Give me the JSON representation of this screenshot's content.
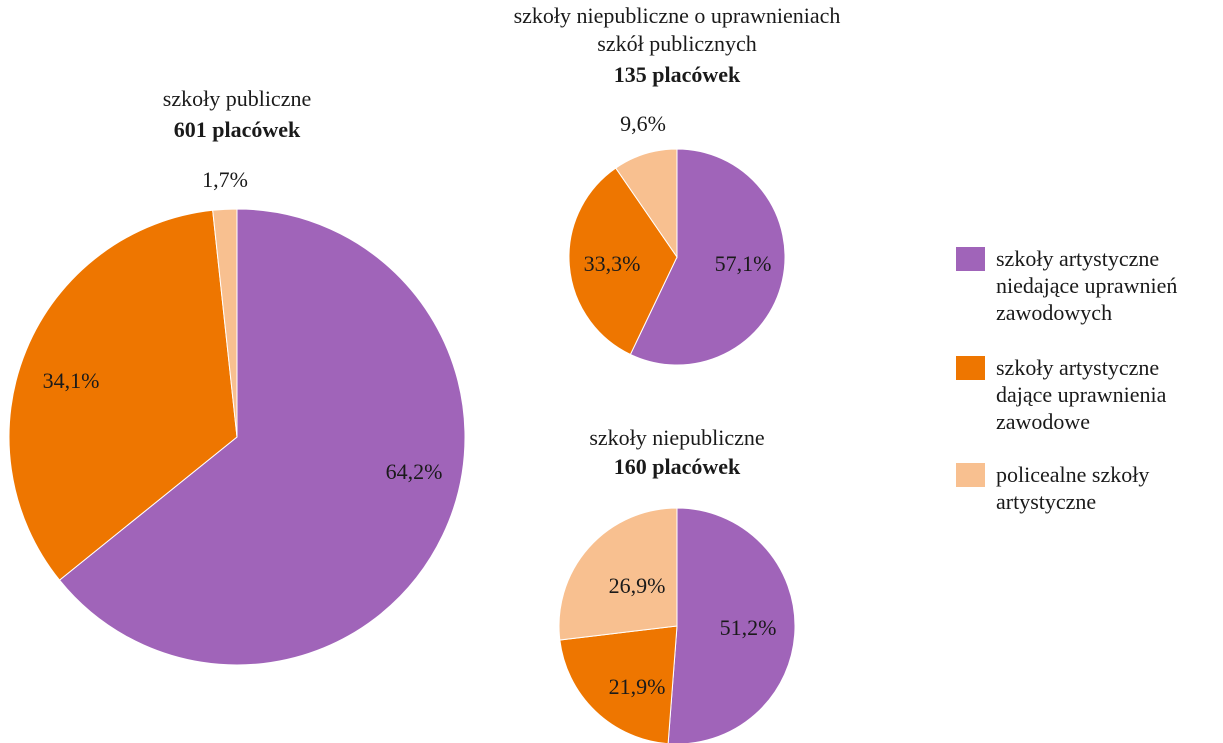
{
  "chart_data": [
    {
      "type": "pie",
      "title": [
        "szkoły publiczne"
      ],
      "subtitle": "601 placówek",
      "categories": [
        "szkoły artystyczne niedające uprawnień zawodowych",
        "szkoły artystyczne dające uprawnienia zawodowe",
        "policealne szkoły artystyczne"
      ],
      "values": [
        64.2,
        34.1,
        1.7
      ],
      "labels": [
        "64,2%",
        "34,1%",
        "1,7%"
      ]
    },
    {
      "type": "pie",
      "title": [
        "szkoły niepubliczne o uprawnieniach",
        "szkół publicznych"
      ],
      "subtitle": "135 placówek",
      "categories": [
        "szkoły artystyczne niedające uprawnień zawodowych",
        "szkoły artystyczne dające uprawnienia zawodowe",
        "policealne szkoły artystyczne"
      ],
      "values": [
        57.1,
        33.3,
        9.6
      ],
      "labels": [
        "57,1%",
        "33,3%",
        "9,6%"
      ]
    },
    {
      "type": "pie",
      "title": [
        "szkoły niepubliczne"
      ],
      "subtitle": "160 placówek",
      "categories": [
        "szkoły artystyczne niedające uprawnień zawodowych",
        "szkoły artystyczne dające uprawnienia zawodowe",
        "policealne szkoły artystyczne"
      ],
      "values": [
        51.2,
        21.9,
        26.9
      ],
      "labels": [
        "51,2%",
        "21,9%",
        "26,9%"
      ]
    }
  ],
  "legend": {
    "items": [
      {
        "lines": [
          "szkoły artystyczne",
          "niedające uprawnień",
          "zawodowych"
        ],
        "color": "#a064b9"
      },
      {
        "lines": [
          "szkoły artystyczne",
          "dające uprawnienia",
          "zawodowe"
        ],
        "color": "#ee7600"
      },
      {
        "lines": [
          "policealne szkoły",
          "artystyczne"
        ],
        "color": "#f8c090"
      }
    ]
  },
  "colors": [
    "#a064b9",
    "#ee7600",
    "#f8c090"
  ]
}
